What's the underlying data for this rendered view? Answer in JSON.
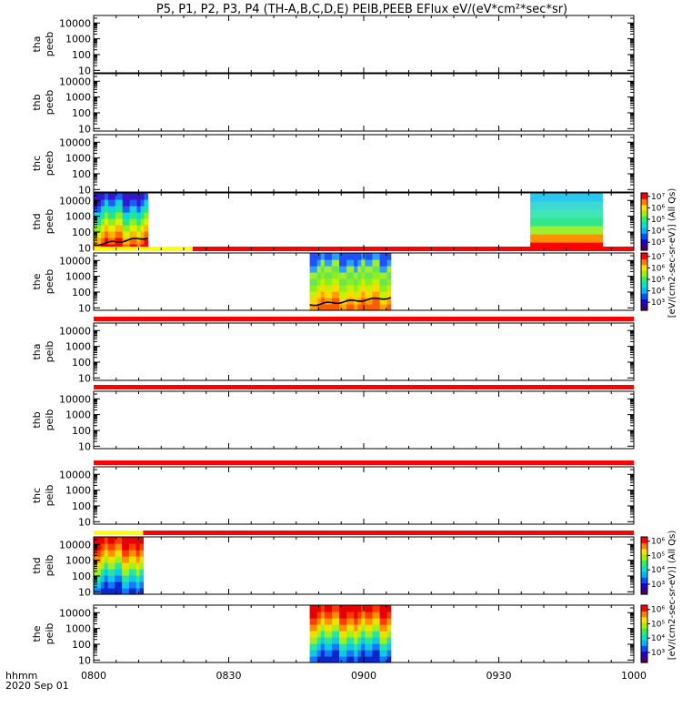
{
  "title": "P5, P1, P2, P3, P4 (TH-A,B,C,D,E) PEIB,PEEB EFlux eV/(eV*cm²*sec*sr)",
  "footer": {
    "time_label": "hhmm",
    "date_label": "2020 Sep 01"
  },
  "colorbar_label": "[eV/(cm2-sec-sr-eV)] (All Qs)",
  "colorbar_ticks": {
    "electron": [
      "10³",
      "10⁴",
      "10⁵",
      "10⁶",
      "10⁷"
    ],
    "ion": [
      "10³",
      "10⁴",
      "10⁵",
      "10⁶"
    ]
  },
  "chart_data": {
    "type": "heatmap",
    "x_axis": {
      "range": [
        "08:00",
        "10:00"
      ],
      "tick_labels": [
        "0800",
        "0830",
        "0900",
        "0930",
        "1000"
      ]
    },
    "y_axis": {
      "scale": "log",
      "range": [
        7,
        30000
      ],
      "tick_labels": [
        "10",
        "100",
        "1000",
        "10000"
      ]
    },
    "panels": [
      {
        "label1": "tha",
        "label2": "peeb",
        "species": "electron",
        "data_blocks": [],
        "colorbar": false,
        "status_bar": []
      },
      {
        "label1": "thb",
        "label2": "peeb",
        "species": "electron",
        "data_blocks": [],
        "colorbar": false,
        "status_bar": []
      },
      {
        "label1": "thc",
        "label2": "peeb",
        "species": "electron",
        "data_blocks": [],
        "colorbar": false,
        "status_bar": []
      },
      {
        "label1": "thd",
        "label2": "peeb",
        "species": "electron",
        "colorbar": true,
        "status_bar": [],
        "data_blocks": [
          {
            "start": "08:00",
            "end": "08:12",
            "pattern": "electron-burst"
          },
          {
            "start": "09:37",
            "end": "09:53",
            "pattern": "electron-quiet"
          }
        ]
      },
      {
        "label1": "the",
        "label2": "peeb",
        "species": "electron",
        "colorbar": true,
        "status_bar": [
          {
            "start": "08:00",
            "end": "08:22",
            "color": "#ffff00"
          },
          {
            "start": "08:22",
            "end": "10:00",
            "color": "#ff0000"
          }
        ],
        "data_blocks": [
          {
            "start": "08:48",
            "end": "09:06",
            "pattern": "electron-burst-split"
          }
        ]
      },
      {
        "label1": "tha",
        "label2": "peib",
        "species": "ion",
        "data_blocks": [],
        "colorbar": false,
        "status_bar": [
          {
            "start": "08:00",
            "end": "10:00",
            "color": "#ff0000"
          }
        ]
      },
      {
        "label1": "thb",
        "label2": "peib",
        "species": "ion",
        "data_blocks": [],
        "colorbar": false,
        "status_bar": [
          {
            "start": "08:00",
            "end": "10:00",
            "color": "#ff0000"
          }
        ]
      },
      {
        "label1": "thc",
        "label2": "peib",
        "species": "ion",
        "data_blocks": [],
        "colorbar": false,
        "status_bar": [
          {
            "start": "08:00",
            "end": "10:00",
            "color": "#ff0000"
          }
        ]
      },
      {
        "label1": "thd",
        "label2": "peib",
        "species": "ion",
        "colorbar": true,
        "status_bar": [
          {
            "start": "08:00",
            "end": "08:11",
            "color": "#ffff00"
          },
          {
            "start": "08:11",
            "end": "10:00",
            "color": "#ff0000"
          }
        ],
        "data_blocks": [
          {
            "start": "08:00",
            "end": "08:11",
            "pattern": "ion-burst"
          }
        ]
      },
      {
        "label1": "the",
        "label2": "peib",
        "species": "ion",
        "colorbar": true,
        "status_bar": [],
        "data_blocks": [
          {
            "start": "08:48",
            "end": "09:06",
            "pattern": "ion-burst"
          }
        ]
      }
    ]
  },
  "colors": {
    "electron-burst": [
      "#ff0000",
      "#ff6a00",
      "#ffb400",
      "#e0f000",
      "#8cf01e",
      "#20e690",
      "#10d2e0",
      "#1e5aff",
      "#3218c8"
    ],
    "electron-quiet": [
      "#ff0000",
      "#ff9000",
      "#a0ee30",
      "#32e68c",
      "#40e6b4",
      "#3cd8d4",
      "#28c8f0"
    ],
    "electron-burst-split": [
      "#ff5a00",
      "#ffa000",
      "#ffd800",
      "#c8f000",
      "#8cf01e",
      "#6ae650",
      "#a0ee30",
      "#2ca0ff",
      "#1e50ff"
    ],
    "ion-burst": [
      "#0a28c8",
      "#1478ff",
      "#10c8e6",
      "#28e6a0",
      "#a0f020",
      "#f0e000",
      "#ff9000",
      "#ff3c00",
      "#e60000"
    ],
    "colorbar": [
      "#460064",
      "#2000c8",
      "#0050ff",
      "#00b4ff",
      "#00e6c8",
      "#30f060",
      "#a0f000",
      "#ffe000",
      "#ff8000",
      "#ff0000"
    ]
  }
}
